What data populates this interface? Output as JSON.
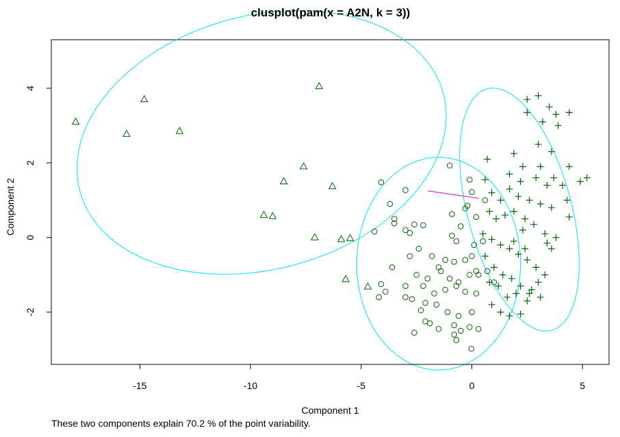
{
  "chart_data": {
    "type": "scatter",
    "title": "clusplot(pam(x = A2N, k = 3))",
    "xlabel": "Component 1",
    "ylabel": "Component 2",
    "subtitle": "These two components explain 70.2 % of the point variability.",
    "xlim": [
      -19,
      6.2
    ],
    "ylim": [
      -3.4,
      5.3
    ],
    "x_ticks": [
      -15,
      -10,
      -5,
      0,
      5
    ],
    "y_ticks": [
      -2,
      0,
      2,
      4
    ],
    "grid": false,
    "legend": "none",
    "colors": {
      "points": "#006400",
      "ellipse": "#00e5ee",
      "link": "#cd00cd",
      "frame": "#000000"
    },
    "ellipses": [
      {
        "cx": -9.5,
        "cy": 2.55,
        "rx": 8.5,
        "ry": 3.4,
        "angle": -15
      },
      {
        "cx": -1.5,
        "cy": -0.7,
        "rx": 3.7,
        "ry": 2.85,
        "angle": 0
      },
      {
        "cx": 2.15,
        "cy": 0.75,
        "rx": 2.35,
        "ry": 3.35,
        "angle": -15
      }
    ],
    "links": [
      {
        "x1": -2.0,
        "y1": 1.25,
        "x2": 0.3,
        "y2": 1.05
      }
    ],
    "series": [
      {
        "marker": "triangle",
        "points": [
          [
            -17.9,
            3.1
          ],
          [
            -15.6,
            2.77
          ],
          [
            -14.8,
            3.7
          ],
          [
            -13.2,
            2.85
          ],
          [
            -6.9,
            4.05
          ],
          [
            -8.5,
            1.5
          ],
          [
            -7.6,
            1.9
          ],
          [
            -6.3,
            1.37
          ],
          [
            -9.4,
            0.6
          ],
          [
            -9.0,
            0.57
          ],
          [
            -7.1,
            0.0
          ],
          [
            -5.9,
            -0.05
          ],
          [
            -5.5,
            -0.02
          ],
          [
            -5.7,
            -1.12
          ],
          [
            -4.7,
            -1.32
          ]
        ]
      },
      {
        "marker": "circle",
        "points": [
          [
            -4.1,
            1.48
          ],
          [
            -3.0,
            1.27
          ],
          [
            -1.0,
            1.93
          ],
          [
            -3.7,
            0.9
          ],
          [
            -3.5,
            0.5
          ],
          [
            -3.5,
            0.38
          ],
          [
            -2.6,
            0.35
          ],
          [
            -2.2,
            0.33
          ],
          [
            -4.4,
            0.16
          ],
          [
            -3.0,
            0.2
          ],
          [
            -2.8,
            0.12
          ],
          [
            -0.9,
            0.63
          ],
          [
            -0.1,
            1.55
          ],
          [
            0.0,
            1.22
          ],
          [
            -0.2,
            0.85
          ],
          [
            -0.3,
            0.78
          ],
          [
            -0.5,
            0.3
          ],
          [
            -0.9,
            0.05
          ],
          [
            -0.7,
            -0.1
          ],
          [
            -2.4,
            -0.3
          ],
          [
            -1.8,
            -0.5
          ],
          [
            -1.2,
            -0.6
          ],
          [
            -0.8,
            -0.65
          ],
          [
            -1.4,
            -0.9
          ],
          [
            -3.6,
            -0.8
          ],
          [
            -2.8,
            -0.5
          ],
          [
            -1.5,
            -0.8
          ],
          [
            -1.0,
            -1.1
          ],
          [
            -0.6,
            -1.2
          ],
          [
            -0.3,
            -0.6
          ],
          [
            0.0,
            -0.5
          ],
          [
            -2.0,
            -1.1
          ],
          [
            -2.5,
            -1.0
          ],
          [
            -3.0,
            -1.3
          ],
          [
            -4.1,
            -1.25
          ],
          [
            -4.2,
            -1.6
          ],
          [
            -3.9,
            -1.45
          ],
          [
            -2.2,
            -1.3
          ],
          [
            -1.7,
            -1.5
          ],
          [
            -1.2,
            -1.4
          ],
          [
            -0.7,
            -1.3
          ],
          [
            -0.1,
            -1.0
          ],
          [
            0.2,
            -0.9
          ],
          [
            -2.7,
            -1.65
          ],
          [
            -2.1,
            -1.75
          ],
          [
            -1.6,
            -1.8
          ],
          [
            -1.1,
            -2.0
          ],
          [
            -0.6,
            -2.1
          ],
          [
            0.0,
            -2.0
          ],
          [
            -2.3,
            -1.95
          ],
          [
            -1.9,
            -2.3
          ],
          [
            -1.5,
            -2.45
          ],
          [
            -0.8,
            -2.35
          ],
          [
            -0.5,
            -2.5
          ],
          [
            -0.1,
            -2.4
          ],
          [
            0.3,
            -2.45
          ],
          [
            -0.8,
            -2.6
          ],
          [
            -0.7,
            -2.75
          ],
          [
            -2.6,
            -2.55
          ],
          [
            -2.1,
            -2.25
          ],
          [
            -3.0,
            -1.6
          ],
          [
            0.2,
            -1.5
          ],
          [
            -0.3,
            -1.45
          ],
          [
            0.1,
            -0.2
          ],
          [
            0.5,
            -0.1
          ],
          [
            0.7,
            -0.9
          ],
          [
            1.0,
            -1.2
          ],
          [
            0.6,
            1.0
          ],
          [
            0.2,
            0.55
          ],
          [
            0.3,
            -1.0
          ],
          [
            -0.02,
            -2.98
          ]
        ]
      },
      {
        "marker": "plus",
        "points": [
          [
            2.5,
            3.7
          ],
          [
            3.0,
            3.8
          ],
          [
            3.5,
            3.5
          ],
          [
            3.8,
            3.3
          ],
          [
            2.5,
            3.35
          ],
          [
            3.2,
            3.1
          ],
          [
            3.9,
            3.0
          ],
          [
            4.4,
            3.35
          ],
          [
            0.7,
            2.1
          ],
          [
            1.9,
            2.25
          ],
          [
            3.0,
            2.5
          ],
          [
            3.6,
            2.3
          ],
          [
            2.3,
            1.9
          ],
          [
            3.1,
            1.9
          ],
          [
            3.7,
            1.6
          ],
          [
            4.4,
            1.9
          ],
          [
            5.2,
            1.6
          ],
          [
            4.9,
            1.5
          ],
          [
            1.7,
            1.7
          ],
          [
            2.2,
            1.5
          ],
          [
            2.9,
            1.6
          ],
          [
            3.4,
            1.4
          ],
          [
            4.1,
            1.4
          ],
          [
            0.6,
            1.55
          ],
          [
            0.9,
            1.2
          ],
          [
            1.3,
            1.0
          ],
          [
            1.7,
            1.3
          ],
          [
            2.1,
            1.1
          ],
          [
            2.6,
            1.0
          ],
          [
            3.1,
            0.9
          ],
          [
            3.6,
            0.8
          ],
          [
            4.3,
            1.0
          ],
          [
            0.8,
            0.7
          ],
          [
            1.1,
            0.5
          ],
          [
            1.5,
            0.6
          ],
          [
            1.9,
            0.7
          ],
          [
            2.4,
            0.5
          ],
          [
            2.8,
            0.35
          ],
          [
            3.3,
            0.1
          ],
          [
            3.8,
            0.0
          ],
          [
            4.4,
            0.55
          ],
          [
            0.5,
            0.1
          ],
          [
            0.9,
            -0.05
          ],
          [
            1.3,
            -0.2
          ],
          [
            1.7,
            -0.3
          ],
          [
            2.1,
            -0.45
          ],
          [
            2.5,
            -0.6
          ],
          [
            2.9,
            -0.8
          ],
          [
            3.3,
            -1.0
          ],
          [
            3.6,
            -0.3
          ],
          [
            0.6,
            -0.5
          ],
          [
            1.0,
            -0.8
          ],
          [
            1.4,
            -1.0
          ],
          [
            1.8,
            -1.1
          ],
          [
            2.2,
            -1.3
          ],
          [
            2.6,
            -1.5
          ],
          [
            3.1,
            -1.6
          ],
          [
            3.4,
            -0.15
          ],
          [
            0.8,
            -1.2
          ],
          [
            1.2,
            -1.3
          ],
          [
            1.6,
            -1.6
          ],
          [
            2.0,
            -1.5
          ],
          [
            2.5,
            -1.7
          ],
          [
            0.9,
            -1.8
          ],
          [
            1.3,
            -2.0
          ],
          [
            1.7,
            -2.1
          ],
          [
            2.2,
            -2.05
          ],
          [
            2.7,
            -1.4
          ],
          [
            3.0,
            -1.2
          ],
          [
            2.4,
            -0.3
          ],
          [
            1.9,
            -0.1
          ],
          [
            2.3,
            0.2
          ]
        ]
      }
    ]
  }
}
